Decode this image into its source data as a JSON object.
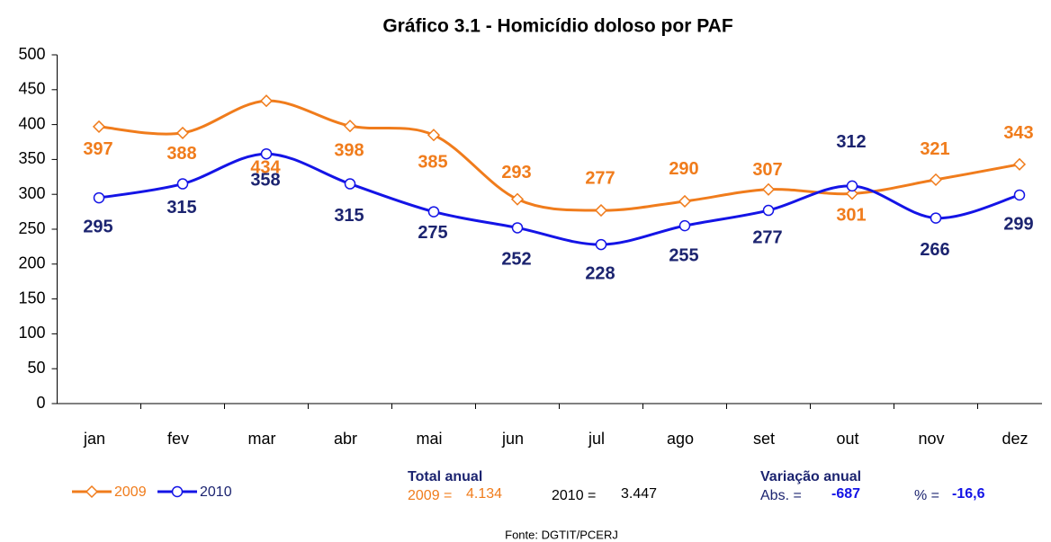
{
  "chart_data": {
    "type": "line",
    "title": "Gráfico 3.1 - Homicídio doloso por PAF",
    "categories": [
      "jan",
      "fev",
      "mar",
      "abr",
      "mai",
      "jun",
      "jul",
      "ago",
      "set",
      "out",
      "nov",
      "dez"
    ],
    "series": [
      {
        "name": "2009",
        "color": "#f07c1c",
        "label_color": "#f07c1c",
        "marker": "diamond",
        "values": [
          397,
          388,
          434,
          398,
          385,
          293,
          277,
          290,
          307,
          301,
          321,
          343
        ]
      },
      {
        "name": "2010",
        "color": "#1414e6",
        "label_color": "#1c2470",
        "marker": "circle",
        "values": [
          295,
          315,
          358,
          315,
          275,
          252,
          228,
          255,
          277,
          312,
          266,
          299
        ]
      }
    ],
    "ylim": [
      0,
      500
    ],
    "yticks": [
      0,
      50,
      100,
      150,
      200,
      250,
      300,
      350,
      400,
      450,
      500
    ],
    "grid": false,
    "smooth": true,
    "annotations": {
      "total_title": "Total anual",
      "total_2009_label": "2009 =",
      "total_2009": "4.134",
      "total_2010_label": "2010 =",
      "total_2010": "3.447",
      "variation_title": "Variação anual",
      "abs_label": "Abs. =",
      "abs_value": "-687",
      "pct_label": "% =",
      "pct_value": "-16,6",
      "source": "Fonte: DGTIT/PCERJ"
    }
  }
}
